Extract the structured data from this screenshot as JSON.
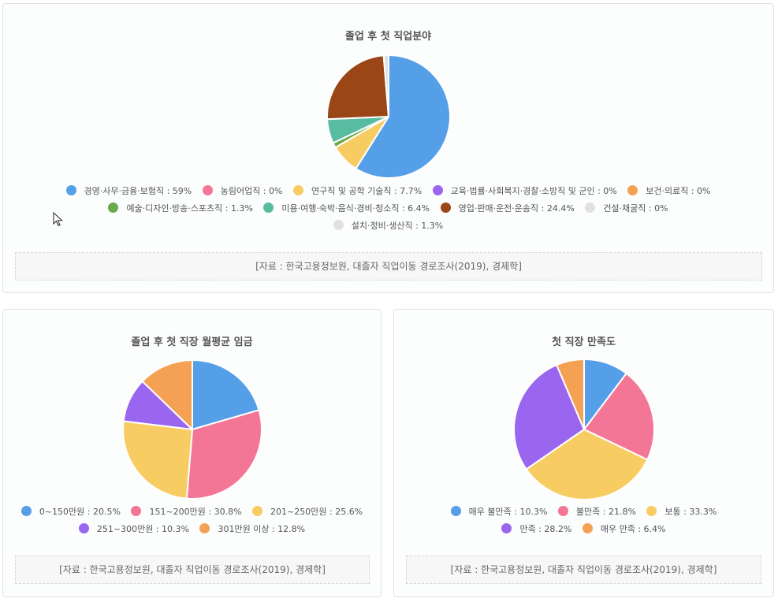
{
  "chart_data": [
    {
      "type": "pie",
      "title": "졸업 후 첫 직업분야",
      "categories": [
        "경영·사무·금융·보험직",
        "농림어업직",
        "연구직 및 공학 기술직",
        "교육·법률·사회복지·경찰·소방직 및 군인",
        "보건·의료직",
        "예술·디자인·방송·스포츠직",
        "미용·여행·숙박·음식·경비·청소직",
        "영업·판매·운전·운송직",
        "건설·채굴직",
        "설치·정비·생산직"
      ],
      "values": [
        59,
        0,
        7.7,
        0,
        0,
        1.3,
        6.4,
        24.4,
        0,
        1.3
      ],
      "colors": [
        "#559fe8",
        "#f37696",
        "#f7cd63",
        "#9b66ef",
        "#f4a153",
        "#6aaa4f",
        "#58bca0",
        "#9a4616",
        "#e1e1e1",
        "#e1e1e1"
      ],
      "legend_labels": [
        "경영·사무·금융·보험직 : 59%",
        "농림어업직 : 0%",
        "연구직 및 공학 기술직 : 7.7%",
        "교육·법률·사회복지·경찰·소방직 및 군인 : 0%",
        "보건·의료직 : 0%",
        "예술·디자인·방송·스포츠직 : 1.3%",
        "미용·여행·숙박·음식·경비·청소직 : 6.4%",
        "영업·판매·운전·운송직 : 24.4%",
        "건설·채굴직 : 0%",
        "설치·정비·생산직 : 1.3%"
      ],
      "source": "[자료 : 한국고용정보원, 대졸자 직업이동 경로조사(2019), 경제학]"
    },
    {
      "type": "pie",
      "title": "졸업 후 첫 직장 월평균 임금",
      "categories": [
        "0~150만원",
        "151~200만원",
        "201~250만원",
        "251~300만원",
        "301만원 이상"
      ],
      "values": [
        20.5,
        30.8,
        25.6,
        10.3,
        12.8
      ],
      "colors": [
        "#559fe8",
        "#f37696",
        "#f7cd63",
        "#9b66ef",
        "#f4a153"
      ],
      "legend_labels": [
        "0~150만원 : 20.5%",
        "151~200만원 : 30.8%",
        "201~250만원 : 25.6%",
        "251~300만원 : 10.3%",
        "301만원 이상 : 12.8%"
      ],
      "source": "[자료 : 한국고용정보원, 대졸자 직업이동 경로조사(2019), 경제학]"
    },
    {
      "type": "pie",
      "title": "첫 직장 만족도",
      "categories": [
        "매우 불만족",
        "불만족",
        "보통",
        "만족",
        "매우 만족"
      ],
      "values": [
        10.3,
        21.8,
        33.3,
        28.2,
        6.4
      ],
      "colors": [
        "#559fe8",
        "#f37696",
        "#f7cd63",
        "#9b66ef",
        "#f4a153"
      ],
      "legend_labels": [
        "매우 불만족 : 10.3%",
        "불만족 : 21.8%",
        "보통 : 33.3%",
        "만족 : 28.2%",
        "매우 만족 : 6.4%"
      ],
      "source": "[자료 : 한국고용정보원, 대졸자 직업이동 경로조사(2019), 경제학]"
    }
  ]
}
